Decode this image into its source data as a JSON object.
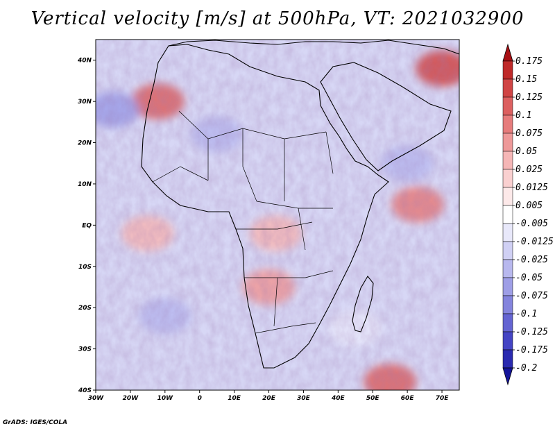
{
  "chart_data": {
    "type": "heatmap",
    "title": "Vertical velocity [m/s] at 500hPa, VT: 2021032900",
    "variable": "Vertical velocity",
    "units": "m/s",
    "level": "500hPa",
    "valid_time": "2021032900",
    "x_ticks": [
      "30W",
      "20W",
      "10W",
      "0",
      "10E",
      "20E",
      "30E",
      "40E",
      "50E",
      "60E",
      "70E"
    ],
    "x_values": [
      -30,
      -20,
      -10,
      0,
      10,
      20,
      30,
      40,
      50,
      60,
      70
    ],
    "y_ticks": [
      "40N",
      "30N",
      "20N",
      "10N",
      "EQ",
      "10S",
      "20S",
      "30S",
      "40S"
    ],
    "y_values": [
      40,
      30,
      20,
      10,
      0,
      -10,
      -20,
      -30,
      -40
    ],
    "xlim": [
      -30,
      75
    ],
    "ylim": [
      -40,
      45
    ],
    "colorbar": {
      "labels": [
        "0.175",
        "0.15",
        "0.125",
        "0.1",
        "0.075",
        "0.05",
        "0.025",
        "0.0125",
        "0.005",
        "-0.005",
        "-0.0125",
        "-0.025",
        "-0.05",
        "-0.075",
        "-0.1",
        "-0.125",
        "-0.175",
        "-0.2"
      ],
      "colors": [
        "#a80f14",
        "#bf2a2a",
        "#d04545",
        "#dc6060",
        "#e67c7c",
        "#ee9999",
        "#f5b6b6",
        "#fad0d0",
        "#fde9e9",
        "#ffffff",
        "#e8e8fa",
        "#d0d0f4",
        "#b8b8ee",
        "#9e9ee6",
        "#8484dd",
        "#6464d2",
        "#4444c4",
        "#2a2ab0",
        "#14149a"
      ]
    },
    "regions": [
      {
        "name": "northwest-africa-ascent",
        "lon": -12,
        "lat": 30,
        "value": 0.1
      },
      {
        "name": "eastern-med-middle-east-ascent",
        "lon": 70,
        "lat": 38,
        "value": 0.125
      },
      {
        "name": "indian-ocean-ascent",
        "lon": 63,
        "lat": 5,
        "value": 0.075
      },
      {
        "name": "madagascar-south-ascent",
        "lon": 55,
        "lat": -38,
        "value": 0.1
      },
      {
        "name": "equatorial-atlantic-ascent",
        "lon": -15,
        "lat": -2,
        "value": 0.025
      },
      {
        "name": "north-atlantic-descent",
        "lon": -25,
        "lat": 28,
        "value": -0.075
      },
      {
        "name": "sahara-descent",
        "lon": 5,
        "lat": 22,
        "value": -0.05
      },
      {
        "name": "arabian-sea-descent",
        "lon": 60,
        "lat": 15,
        "value": -0.05
      },
      {
        "name": "south-atlantic-descent",
        "lon": -10,
        "lat": -22,
        "value": -0.05
      },
      {
        "name": "southern-indian-descent",
        "lon": 45,
        "lat": -25,
        "value": -0.0125
      },
      {
        "name": "congo-mixed",
        "lon": 22,
        "lat": -2,
        "value": 0.025
      },
      {
        "name": "zambia-ascent",
        "lon": 20,
        "lat": -15,
        "value": 0.05
      }
    ]
  },
  "footer": {
    "credit": "GrADS: IGES/COLA"
  }
}
